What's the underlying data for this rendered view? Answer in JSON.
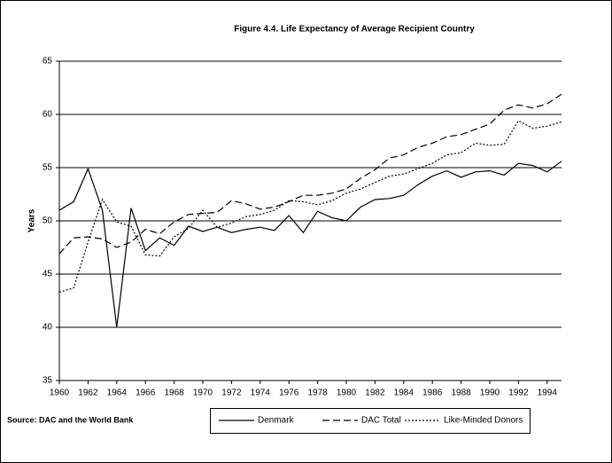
{
  "chart_data": {
    "type": "line",
    "title": "Figure 4.4.  Life Expectancy of Average Recipient Country",
    "y_label": "Years",
    "source": "Source: DAC and the World Bank",
    "x": [
      1960,
      1961,
      1962,
      1963,
      1964,
      1965,
      1966,
      1967,
      1968,
      1969,
      1970,
      1971,
      1972,
      1973,
      1974,
      1975,
      1976,
      1977,
      1978,
      1979,
      1980,
      1981,
      1982,
      1983,
      1984,
      1985,
      1986,
      1987,
      1988,
      1989,
      1990,
      1991,
      1992,
      1993,
      1994,
      1995
    ],
    "xlim": [
      1960,
      1995
    ],
    "xticks": [
      1960,
      1962,
      1964,
      1966,
      1968,
      1970,
      1972,
      1974,
      1976,
      1978,
      1980,
      1982,
      1984,
      1986,
      1988,
      1990,
      1992,
      1994
    ],
    "ylim": [
      35,
      65
    ],
    "yticks": [
      35,
      40,
      45,
      50,
      55,
      60,
      65
    ],
    "grid": true,
    "series": [
      {
        "name": "Denmark",
        "color": "#000000",
        "dash": "none",
        "values": [
          51,
          51.8,
          54.9,
          51,
          40,
          51.2,
          47.2,
          48.4,
          47.7,
          49.5,
          49.0,
          49.4,
          48.9,
          49.2,
          49.4,
          49.1,
          50.5,
          48.9,
          50.9,
          50.3,
          50.0,
          51.3,
          52.0,
          52.1,
          52.4,
          53.4,
          54.2,
          54.7,
          54.1,
          54.6,
          54.7,
          54.3,
          55.4,
          55.2,
          54.6,
          55.6
        ]
      },
      {
        "name": "DAC Total",
        "color": "#000000",
        "dash": "8,4",
        "values": [
          46.9,
          48.4,
          48.5,
          48.3,
          47.5,
          48.0,
          49.2,
          48.8,
          49.9,
          50.6,
          50.7,
          50.8,
          51.9,
          51.6,
          51.1,
          51.3,
          51.8,
          52.4,
          52.4,
          52.6,
          53.0,
          54.0,
          54.8,
          55.9,
          56.2,
          56.9,
          57.3,
          57.9,
          58.1,
          58.6,
          59.1,
          60.4,
          60.9,
          60.6,
          61.0,
          61.9
        ]
      },
      {
        "name": "Like-Minded Donors",
        "color": "#000000",
        "dash": "2,2",
        "values": [
          43.3,
          43.7,
          48.0,
          52.0,
          49.9,
          49.5,
          46.8,
          46.7,
          48.5,
          49.3,
          51.0,
          49.4,
          49.8,
          50.4,
          50.6,
          51.0,
          51.9,
          51.8,
          51.5,
          51.9,
          52.6,
          53.0,
          53.6,
          54.2,
          54.4,
          54.9,
          55.4,
          56.2,
          56.4,
          57.3,
          57.1,
          57.2,
          59.4,
          58.7,
          58.9,
          59.3
        ]
      }
    ]
  }
}
